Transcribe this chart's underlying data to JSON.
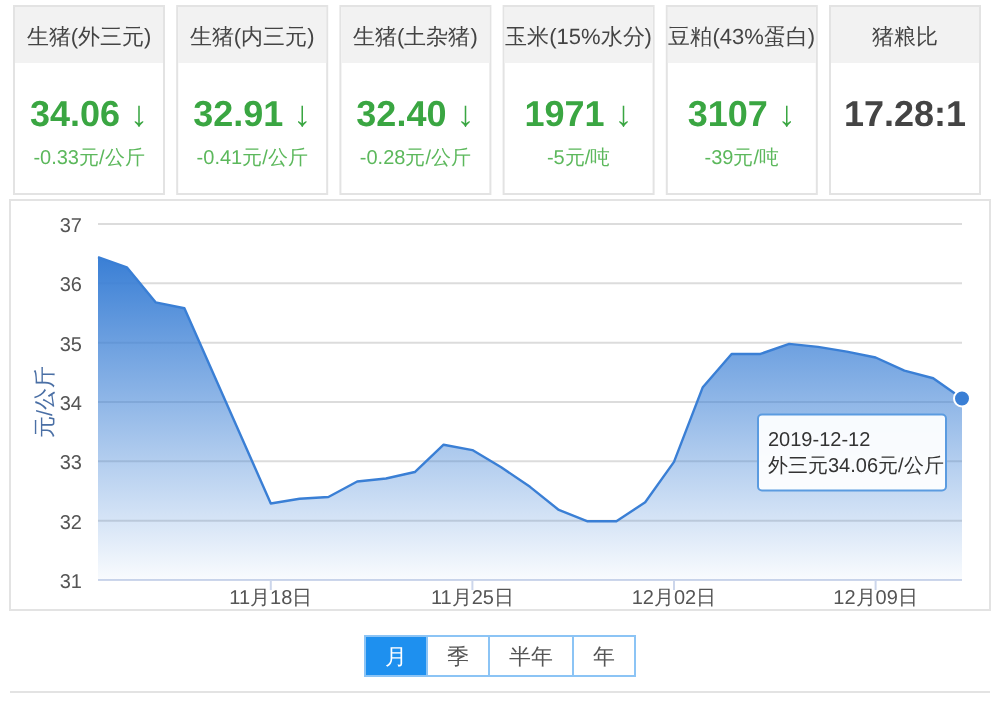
{
  "chart_data": [
    {
      "type": "other",
      "annotations": [
        "生猪(外三元)\n34.06 ↓\n-0.33元/公斤",
        "生猪(内三元)\n32.91 ↓\n-0.41元/公斤",
        "生猪(土杂猪)\n32.40 ↓\n-0.28元/公斤",
        "玉米(15%水分)\n1971 ↓\n-5元/吨",
        "豆粕(43%蛋白)\n3107 ↓\n-39元/吨",
        "猪粮比\n17.28:1"
      ]
    },
    {
      "type": "area",
      "ylabel": "元/公斤",
      "grid": "y",
      "x": [
        "2019-11-12",
        "2019-11-13",
        "2019-11-14",
        "2019-11-15",
        "2019-11-18",
        "2019-11-19",
        "2019-11-20",
        "2019-11-21",
        "2019-11-22",
        "2019-11-23",
        "2019-11-24",
        "2019-11-25",
        "2019-11-26",
        "2019-11-27",
        "2019-11-28",
        "2019-11-29",
        "2019-11-30",
        "2019-12-01",
        "2019-12-02",
        "2019-12-03",
        "2019-12-04",
        "2019-12-05",
        "2019-12-06",
        "2019-12-07",
        "2019-12-08",
        "2019-12-09",
        "2019-12-10",
        "2019-12-11",
        "2019-12-12"
      ],
      "series": [
        {
          "color": "#3a7fd5",
          "values": [
            36.44,
            36.27,
            35.68,
            35.58,
            32.29,
            32.37,
            32.4,
            32.66,
            32.71,
            32.82,
            33.28,
            33.19,
            32.9,
            32.57,
            32.18,
            31.99,
            31.99,
            32.31,
            32.99,
            34.25,
            34.81,
            34.81,
            34.98,
            34.93,
            34.85,
            34.75,
            34.53,
            34.4,
            34.06
          ]
        }
      ],
      "xlim": [
        "2019-11-12",
        "2019-12-12"
      ],
      "xticks": [
        {
          "value": "2019-11-18",
          "label": "11月18日"
        },
        {
          "value": "2019-11-25",
          "label": "11月25日"
        },
        {
          "value": "2019-12-02",
          "label": "12月02日"
        },
        {
          "value": "2019-12-09",
          "label": "12月09日"
        }
      ],
      "ylim": [
        31,
        37
      ],
      "yticks": [
        31,
        32,
        33,
        34,
        35,
        36,
        37
      ],
      "annotations": [
        {
          "text": "2019-12-12\n外三元34.06元/公斤",
          "x": "2019-12-12",
          "y": 34.06
        },
        "月",
        "季",
        "半年",
        "年"
      ]
    }
  ]
}
